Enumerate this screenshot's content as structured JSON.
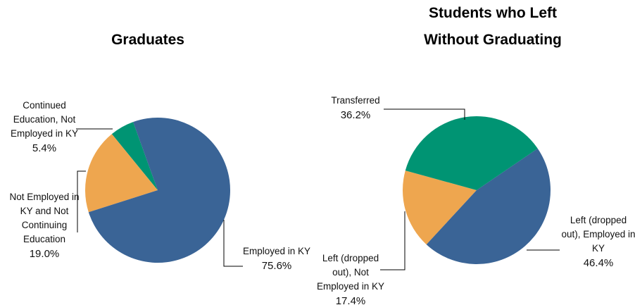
{
  "chart_data": [
    {
      "type": "pie",
      "title": "Graduates",
      "categories": [
        "Employed in KY",
        "Not Employed in KY and Not Continuing Education",
        "Continued Education, Not Employed in KY"
      ],
      "values": [
        75.6,
        19.0,
        5.4
      ],
      "value_labels": [
        "75.6%",
        "19.0%",
        "5.4%"
      ],
      "colors": [
        "#3a6496",
        "#eea64f",
        "#009473"
      ]
    },
    {
      "type": "pie",
      "title": "Students who Left Without Graduating",
      "categories": [
        "Transferred",
        "Left (dropped out), Employed in KY",
        "Left (dropped out), Not Employed in KY"
      ],
      "values": [
        36.2,
        46.4,
        17.4
      ],
      "value_labels": [
        "36.2%",
        "46.4%",
        "17.4%"
      ],
      "colors": [
        "#009473",
        "#3a6496",
        "#eea64f"
      ]
    }
  ]
}
